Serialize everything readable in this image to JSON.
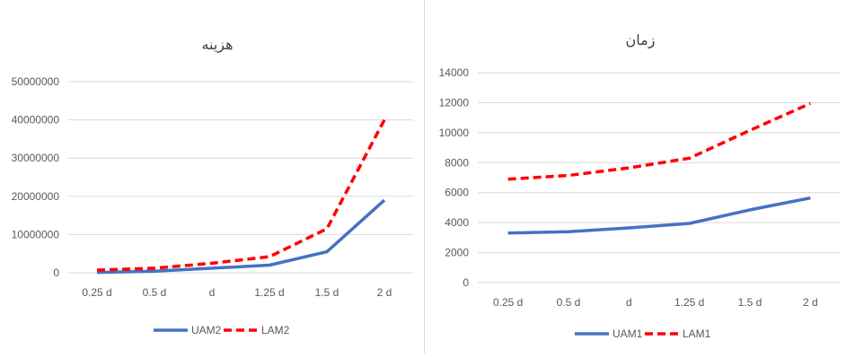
{
  "chart_data": [
    {
      "type": "line",
      "title": "هزینه",
      "categories": [
        "0.25 d",
        "0.5 d",
        "d",
        "1.25 d",
        "1.5 d",
        "2 d"
      ],
      "series": [
        {
          "name": "UAM2",
          "values": [
            100000,
            400000,
            1200000,
            2000000,
            5500000,
            19000000
          ],
          "color": "#4472c4",
          "dash": "solid"
        },
        {
          "name": "LAM2",
          "values": [
            700000,
            1200000,
            2500000,
            4200000,
            11500000,
            40000000
          ],
          "color": "#ff0000",
          "dash": "dashed"
        }
      ],
      "yticks": [
        "0",
        "10000000",
        "20000000",
        "30000000",
        "40000000",
        "50000000"
      ],
      "ylim": [
        0,
        50000000
      ],
      "grid": true,
      "legend": "bottom"
    },
    {
      "type": "line",
      "title": "زمان",
      "categories": [
        "0.25 d",
        "0.5 d",
        "d",
        "1.25 d",
        "1.5 d",
        "2 d"
      ],
      "series": [
        {
          "name": "UAM1",
          "values": [
            3300,
            3400,
            3650,
            3950,
            4850,
            5650
          ],
          "color": "#4472c4",
          "dash": "solid"
        },
        {
          "name": "LAM1",
          "values": [
            6900,
            7150,
            7650,
            8300,
            10150,
            11950
          ],
          "color": "#ff0000",
          "dash": "dashed"
        }
      ],
      "yticks": [
        "0",
        "2000",
        "4000",
        "6000",
        "8000",
        "10000",
        "12000",
        "14000"
      ],
      "ylim": [
        0,
        14000
      ],
      "grid": true,
      "legend": "bottom"
    }
  ]
}
